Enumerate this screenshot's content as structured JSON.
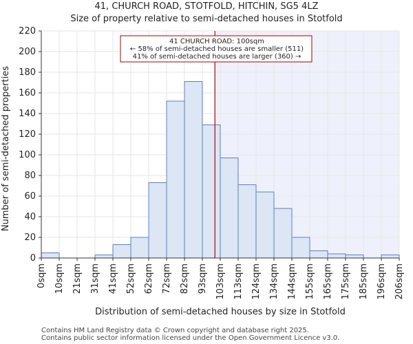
{
  "chart_data": {
    "type": "bar",
    "title": "41, CHURCH ROAD, STOTFOLD, HITCHIN, SG5 4LZ",
    "subtitle": "Size of property relative to semi-detached houses in Stotfold",
    "xlabel": "Distribution of semi-detached houses by size in Stotfold",
    "ylabel": "Number of semi-detached properties",
    "ylim": [
      0,
      220
    ],
    "yticks": [
      0,
      20,
      40,
      60,
      80,
      100,
      120,
      140,
      160,
      180,
      200,
      220
    ],
    "x_tick_labels": [
      "0sqm",
      "10sqm",
      "21sqm",
      "31sqm",
      "41sqm",
      "52sqm",
      "62sqm",
      "72sqm",
      "82sqm",
      "93sqm",
      "103sqm",
      "113sqm",
      "124sqm",
      "134sqm",
      "144sqm",
      "155sqm",
      "165sqm",
      "175sqm",
      "185sqm",
      "196sqm",
      "206sqm"
    ],
    "values": [
      5,
      0,
      0,
      3,
      13,
      20,
      73,
      152,
      171,
      129,
      97,
      71,
      64,
      48,
      20,
      7,
      4,
      3,
      0,
      3
    ],
    "marker": {
      "label": "41 CHURCH ROAD: 100sqm",
      "bin_position": 9.7
    },
    "annotation": {
      "line1": "41 CHURCH ROAD: 100sqm",
      "line2": "← 58% of semi-detached houses are smaller (511)",
      "line3": "41% of semi-detached houses are larger (360) →"
    },
    "grid": true
  },
  "footer": {
    "line1": "Contains HM Land Registry data © Crown copyright and database right 2025.",
    "line2": "Contains public sector information licensed under the Open Government Licence v3.0."
  },
  "colors": {
    "bar_fill": "#dce6f4",
    "bar_stroke": "#5b7fc4",
    "highlight_region": "#eef1fb",
    "marker_line": "#aa0000",
    "grid": "#e6e6e6",
    "axis": "#333333"
  }
}
